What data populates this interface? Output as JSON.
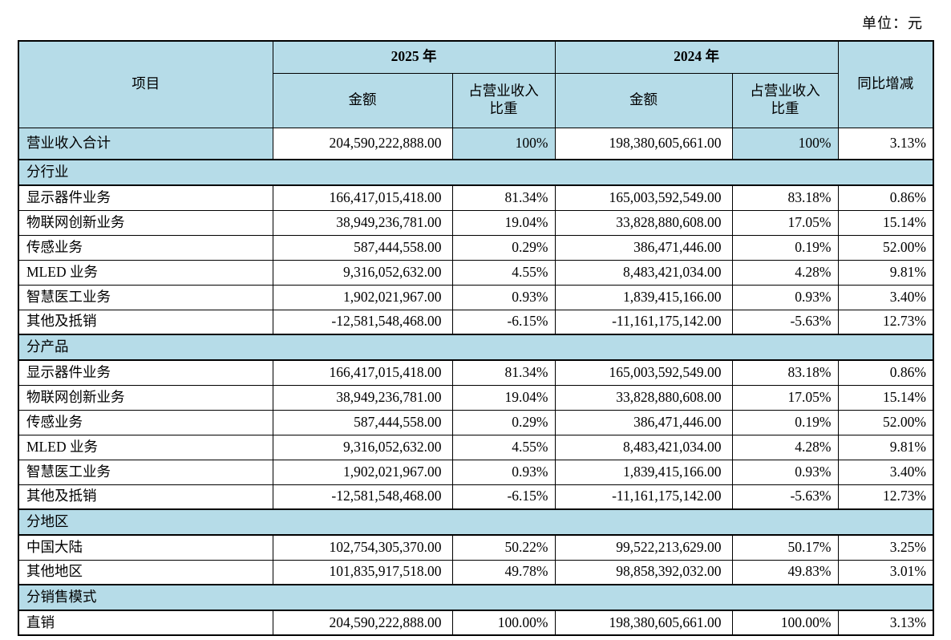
{
  "unit_label": "单位：元",
  "table": {
    "headers": {
      "item": "项目",
      "year_2025": "2025 年",
      "year_2024": "2024 年",
      "amount": "金额",
      "share": "占营业收入\n比重",
      "yoy": "同比增减"
    },
    "rows": [
      {
        "type": "total",
        "label": "营业收入合计",
        "a2025": "204,590,222,888.00",
        "p2025": "100%",
        "a2024": "198,380,605,661.00",
        "p2024": "100%",
        "yoy": "3.13%"
      },
      {
        "type": "section",
        "label": "分行业"
      },
      {
        "type": "data",
        "label": "显示器件业务",
        "a2025": "166,417,015,418.00",
        "p2025": "81.34%",
        "a2024": "165,003,592,549.00",
        "p2024": "83.18%",
        "yoy": "0.86%"
      },
      {
        "type": "data",
        "label": "物联网创新业务",
        "a2025": "38,949,236,781.00",
        "p2025": "19.04%",
        "a2024": "33,828,880,608.00",
        "p2024": "17.05%",
        "yoy": "15.14%"
      },
      {
        "type": "data",
        "label": "传感业务",
        "a2025": "587,444,558.00",
        "p2025": "0.29%",
        "a2024": "386,471,446.00",
        "p2024": "0.19%",
        "yoy": "52.00%"
      },
      {
        "type": "data",
        "label": "MLED 业务",
        "a2025": "9,316,052,632.00",
        "p2025": "4.55%",
        "a2024": "8,483,421,034.00",
        "p2024": "4.28%",
        "yoy": "9.81%"
      },
      {
        "type": "data",
        "label": "智慧医工业务",
        "a2025": "1,902,021,967.00",
        "p2025": "0.93%",
        "a2024": "1,839,415,166.00",
        "p2024": "0.93%",
        "yoy": "3.40%"
      },
      {
        "type": "data",
        "label": "其他及抵销",
        "a2025": "-12,581,548,468.00",
        "p2025": "-6.15%",
        "a2024": "-11,161,175,142.00",
        "p2024": "-5.63%",
        "yoy": "12.73%"
      },
      {
        "type": "section",
        "label": "分产品"
      },
      {
        "type": "data",
        "label": "显示器件业务",
        "a2025": "166,417,015,418.00",
        "p2025": "81.34%",
        "a2024": "165,003,592,549.00",
        "p2024": "83.18%",
        "yoy": "0.86%"
      },
      {
        "type": "data",
        "label": "物联网创新业务",
        "a2025": "38,949,236,781.00",
        "p2025": "19.04%",
        "a2024": "33,828,880,608.00",
        "p2024": "17.05%",
        "yoy": "15.14%"
      },
      {
        "type": "data",
        "label": "传感业务",
        "a2025": "587,444,558.00",
        "p2025": "0.29%",
        "a2024": "386,471,446.00",
        "p2024": "0.19%",
        "yoy": "52.00%"
      },
      {
        "type": "data",
        "label": "MLED 业务",
        "a2025": "9,316,052,632.00",
        "p2025": "4.55%",
        "a2024": "8,483,421,034.00",
        "p2024": "4.28%",
        "yoy": "9.81%"
      },
      {
        "type": "data",
        "label": "智慧医工业务",
        "a2025": "1,902,021,967.00",
        "p2025": "0.93%",
        "a2024": "1,839,415,166.00",
        "p2024": "0.93%",
        "yoy": "3.40%"
      },
      {
        "type": "data",
        "label": "其他及抵销",
        "a2025": "-12,581,548,468.00",
        "p2025": "-6.15%",
        "a2024": "-11,161,175,142.00",
        "p2024": "-5.63%",
        "yoy": "12.73%"
      },
      {
        "type": "section",
        "label": "分地区"
      },
      {
        "type": "data",
        "label": "中国大陆",
        "a2025": "102,754,305,370.00",
        "p2025": "50.22%",
        "a2024": "99,522,213,629.00",
        "p2024": "50.17%",
        "yoy": "3.25%"
      },
      {
        "type": "data",
        "label": "其他地区",
        "a2025": "101,835,917,518.00",
        "p2025": "49.78%",
        "a2024": "98,858,392,032.00",
        "p2024": "49.83%",
        "yoy": "3.01%"
      },
      {
        "type": "section",
        "label": "分销售模式"
      },
      {
        "type": "data",
        "label": "直销",
        "a2025": "204,590,222,888.00",
        "p2025": "100.00%",
        "a2024": "198,380,605,661.00",
        "p2024": "100.00%",
        "yoy": "3.13%"
      }
    ]
  }
}
